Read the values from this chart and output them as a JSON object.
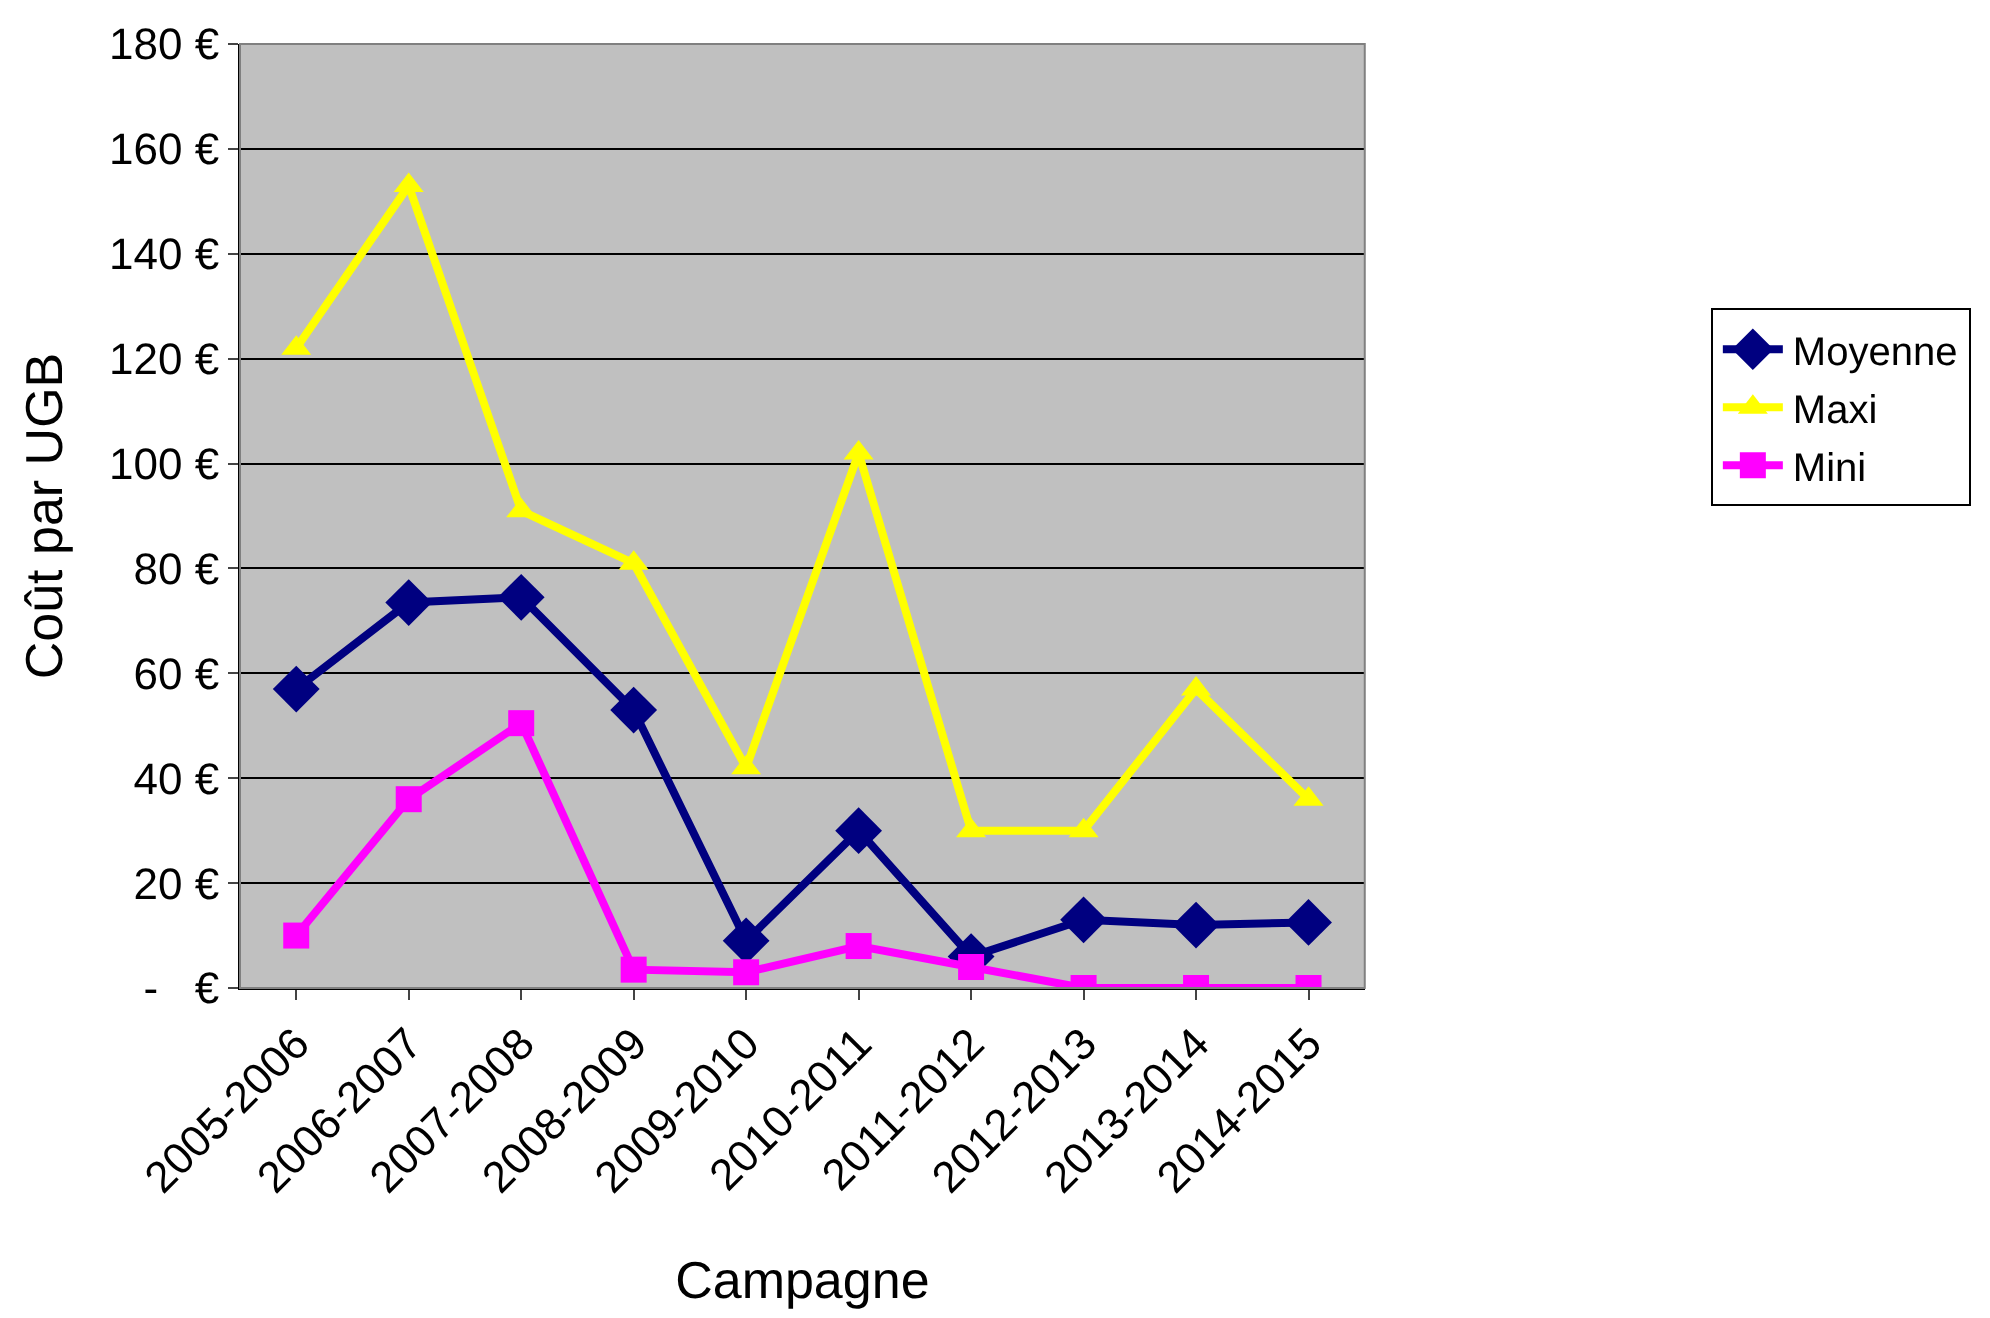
{
  "chart_data": {
    "type": "line",
    "xlabel": "Campagne",
    "ylabel": "Coût par UGB",
    "categories": [
      "2005-2006",
      "2006-2007",
      "2007-2008",
      "2008-2009",
      "2009-2010",
      "2010-2011",
      "2011-2012",
      "2012-2013",
      "2013-2014",
      "2014-2015"
    ],
    "series": [
      {
        "name": "Moyenne",
        "color": "#000080",
        "marker": "diamond",
        "values": [
          57,
          73.5,
          74.5,
          53,
          9,
          30,
          6,
          13,
          12,
          12.5
        ]
      },
      {
        "name": "Maxi",
        "color": "#ffff00",
        "marker": "triangle",
        "values": [
          122,
          153,
          91,
          81,
          42,
          102,
          30,
          30,
          57,
          36
        ]
      },
      {
        "name": "Mini",
        "color": "#ff00ff",
        "marker": "square",
        "values": [
          10,
          36,
          50.5,
          3.5,
          3,
          8,
          4,
          0,
          0,
          0
        ]
      }
    ],
    "ylim": [
      0,
      180
    ],
    "yticks": [
      {
        "value": 0,
        "label": "-   €"
      },
      {
        "value": 20,
        "label": "20 €"
      },
      {
        "value": 40,
        "label": "40 €"
      },
      {
        "value": 60,
        "label": "60 €"
      },
      {
        "value": 80,
        "label": "80 €"
      },
      {
        "value": 100,
        "label": "100 €"
      },
      {
        "value": 120,
        "label": "120 €"
      },
      {
        "value": 140,
        "label": "140 €"
      },
      {
        "value": 160,
        "label": "160 €"
      },
      {
        "value": 180,
        "label": "180 €"
      }
    ],
    "grid": "y",
    "legend": "right",
    "line_style": "solid"
  }
}
